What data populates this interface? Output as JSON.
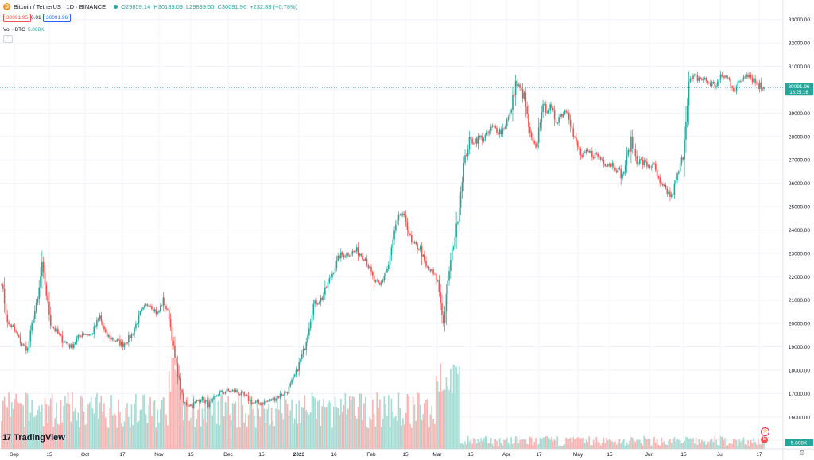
{
  "header": {
    "symbol": "Bitcoin / TetherUS · 1D · BINANCE",
    "open": "O29859.14",
    "high": "H30189.09",
    "low": "L29839.50",
    "close": "C30091.96",
    "change": "+232.83 (+0.78%)",
    "sell_price": "30091.95",
    "spread": "0.01",
    "buy_price": "30091.96",
    "volume_label": "Vol · BTC",
    "volume_value": "5.808K"
  },
  "price_tag": {
    "price": "30091.96",
    "countdown": "18:25:16"
  },
  "volume_tag": "5.808K",
  "logo": "TradingView",
  "colors": {
    "up": "#26a69a",
    "down": "#ef5350",
    "up_vol": "#a5dbd3",
    "down_vol": "#f6b3b1",
    "grid": "#f0f3fa"
  },
  "chart_data": {
    "type": "candlestick",
    "title": "Bitcoin / TetherUS · 1D · BINANCE",
    "xlabel": "",
    "ylabel": "",
    "x_ticks": [
      "Sep",
      "15",
      "Oct",
      "17",
      "Nov",
      "15",
      "Dec",
      "15",
      "2023",
      "16",
      "Feb",
      "15",
      "Mar",
      "15",
      "Apr",
      "17",
      "May",
      "15",
      "Jun",
      "15",
      "Jul",
      "17"
    ],
    "y_ticks": [
      "33000.00",
      "32000.00",
      "31000.00",
      "30000.00",
      "29000.00",
      "28000.00",
      "27000.00",
      "26000.00",
      "25000.00",
      "24000.00",
      "23000.00",
      "22000.00",
      "21000.00",
      "20000.00",
      "19000.00",
      "18000.00",
      "17000.00",
      "16000.00",
      "15000.00"
    ],
    "ylim": [
      14600,
      33500
    ],
    "anchors": [
      [
        0,
        21800
      ],
      [
        4,
        20000
      ],
      [
        8,
        19800
      ],
      [
        14,
        19100
      ],
      [
        18,
        18900
      ],
      [
        22,
        20300
      ],
      [
        25,
        21000
      ],
      [
        28,
        22500
      ],
      [
        34,
        20000
      ],
      [
        42,
        19300
      ],
      [
        48,
        19000
      ],
      [
        56,
        19600
      ],
      [
        62,
        19500
      ],
      [
        68,
        20300
      ],
      [
        72,
        19500
      ],
      [
        78,
        19300
      ],
      [
        84,
        19100
      ],
      [
        90,
        19500
      ],
      [
        96,
        20400
      ],
      [
        102,
        20900
      ],
      [
        108,
        20400
      ],
      [
        112,
        21000
      ],
      [
        116,
        20300
      ],
      [
        120,
        18500
      ],
      [
        126,
        16600
      ],
      [
        132,
        16500
      ],
      [
        138,
        16800
      ],
      [
        144,
        16500
      ],
      [
        150,
        17000
      ],
      [
        156,
        17100
      ],
      [
        162,
        17100
      ],
      [
        168,
        16900
      ],
      [
        174,
        16600
      ],
      [
        180,
        16600
      ],
      [
        186,
        16700
      ],
      [
        192,
        16900
      ],
      [
        198,
        17100
      ],
      [
        204,
        17900
      ],
      [
        210,
        19000
      ],
      [
        216,
        20800
      ],
      [
        222,
        21100
      ],
      [
        228,
        22000
      ],
      [
        234,
        22900
      ],
      [
        240,
        23000
      ],
      [
        246,
        23100
      ],
      [
        252,
        22800
      ],
      [
        258,
        21800
      ],
      [
        262,
        21600
      ],
      [
        268,
        22500
      ],
      [
        272,
        23900
      ],
      [
        276,
        24700
      ],
      [
        280,
        24400
      ],
      [
        284,
        23400
      ],
      [
        290,
        23200
      ],
      [
        294,
        22400
      ],
      [
        298,
        22200
      ],
      [
        302,
        21800
      ],
      [
        306,
        20000
      ],
      [
        310,
        22300
      ],
      [
        316,
        24500
      ],
      [
        320,
        26800
      ],
      [
        324,
        27800
      ],
      [
        330,
        27900
      ],
      [
        336,
        28000
      ],
      [
        340,
        28400
      ],
      [
        346,
        28200
      ],
      [
        352,
        28900
      ],
      [
        356,
        30300
      ],
      [
        362,
        29700
      ],
      [
        366,
        28000
      ],
      [
        370,
        27400
      ],
      [
        374,
        29200
      ],
      [
        380,
        29200
      ],
      [
        384,
        28700
      ],
      [
        388,
        29000
      ],
      [
        392,
        29200
      ],
      [
        396,
        28000
      ],
      [
        402,
        27100
      ],
      [
        406,
        27300
      ],
      [
        412,
        27200
      ],
      [
        418,
        26900
      ],
      [
        424,
        26800
      ],
      [
        430,
        26300
      ],
      [
        436,
        27800
      ],
      [
        440,
        27000
      ],
      [
        446,
        26800
      ],
      [
        452,
        26700
      ],
      [
        456,
        25900
      ],
      [
        460,
        25700
      ],
      [
        464,
        25400
      ],
      [
        468,
        26300
      ],
      [
        472,
        27200
      ],
      [
        476,
        30300
      ],
      [
        480,
        30500
      ],
      [
        484,
        30500
      ],
      [
        490,
        30300
      ],
      [
        494,
        30200
      ],
      [
        500,
        30600
      ],
      [
        504,
        30400
      ],
      [
        508,
        30000
      ],
      [
        512,
        30400
      ],
      [
        516,
        30800
      ],
      [
        520,
        30500
      ],
      [
        524,
        30200
      ],
      [
        528,
        30091.96
      ]
    ],
    "current_price": 30091.96,
    "volume_ylim_k": [
      0,
      40
    ]
  }
}
